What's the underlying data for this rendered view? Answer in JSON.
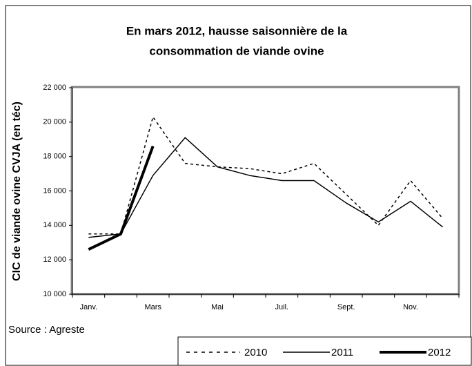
{
  "chart_data": {
    "type": "line",
    "title": [
      "En mars 2012,  hausse saisonnière de la",
      "consommation de viande ovine"
    ],
    "y_label": "CIC de viande ovine CVJA (en téc)",
    "annotation": "Source : Agreste",
    "categories": [
      "Janv.",
      null,
      "Mars",
      null,
      "Mai",
      null,
      "Juil.",
      null,
      "Sept.",
      null,
      "Nov.",
      null
    ],
    "series": [
      {
        "name": "2010",
        "color": "#000000",
        "dash": true,
        "width": 1.5,
        "values": [
          13500,
          13500,
          20300,
          17600,
          17400,
          17300,
          17000,
          17600,
          15800,
          14000,
          16600,
          14400
        ]
      },
      {
        "name": "2011",
        "color": "#000000",
        "dash": false,
        "width": 1.5,
        "values": [
          13300,
          13500,
          16900,
          19100,
          17400,
          16900,
          16600,
          16600,
          15300,
          14200,
          15400,
          13900
        ]
      },
      {
        "name": "2012",
        "color": "#000000",
        "dash": false,
        "width": 4,
        "values": [
          12600,
          13500,
          18600,
          null,
          null,
          null,
          null,
          null,
          null,
          null,
          null,
          null
        ]
      }
    ],
    "ylim": [
      10000,
      22000
    ],
    "yticks": [
      {
        "value": 10000,
        "label": "10 000"
      },
      {
        "value": 12000,
        "label": "12 000"
      },
      {
        "value": 14000,
        "label": "14 000"
      },
      {
        "value": 16000,
        "label": "16 000"
      },
      {
        "value": 18000,
        "label": "18 000"
      },
      {
        "value": 20000,
        "label": "20 000"
      },
      {
        "value": 22000,
        "label": "22 000"
      }
    ],
    "grid": false,
    "legend": "bottom-right"
  }
}
